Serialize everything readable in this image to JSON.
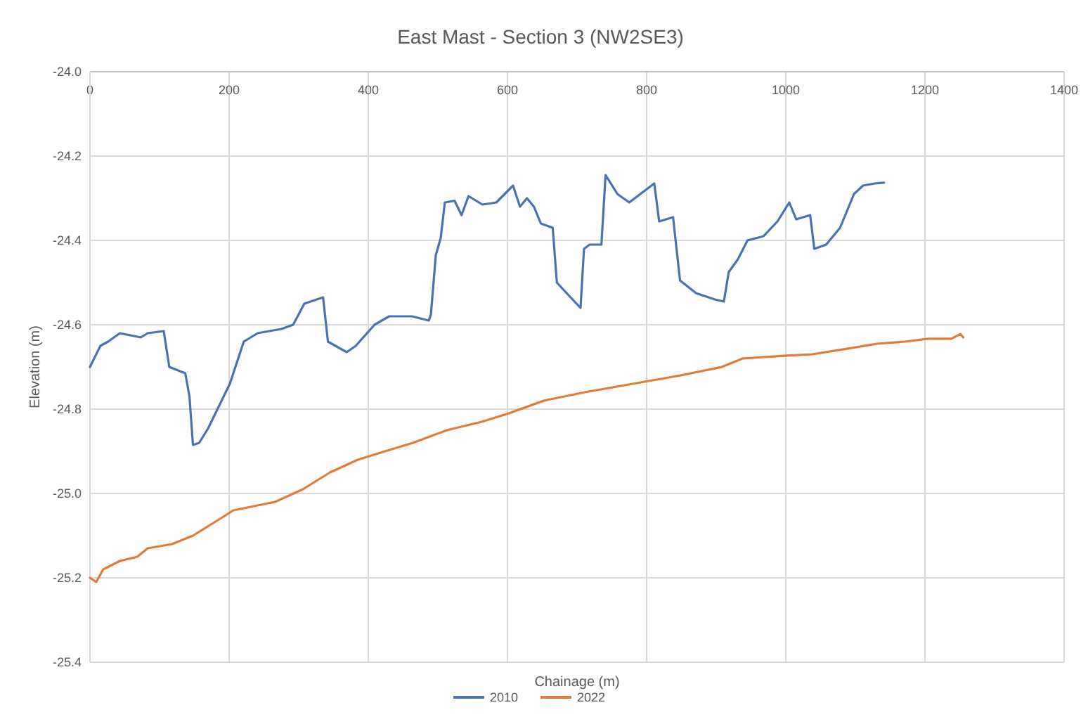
{
  "chart_data": {
    "type": "line",
    "title": "East Mast - Section 3 (NW2SE3)",
    "xlabel": "Chainage (m)",
    "ylabel": "Elevation (m)",
    "xlim": [
      0,
      1400
    ],
    "xticks": [
      0,
      200,
      400,
      600,
      800,
      1000,
      1200,
      1400
    ],
    "ylim": [
      -25.4,
      -24.0
    ],
    "yticks": [
      {
        "value": -25.4,
        "label": "-25.4"
      },
      {
        "value": -25.2,
        "label": "-25.2"
      },
      {
        "value": -25.0,
        "label": "-25.0"
      },
      {
        "value": -24.8,
        "label": "-24.8"
      },
      {
        "value": -24.6,
        "label": "-24.6"
      },
      {
        "value": -24.4,
        "label": "-24.4"
      },
      {
        "value": -24.2,
        "label": "-24.2"
      },
      {
        "value": -24.0,
        "label": "-24.0"
      }
    ],
    "grid": true,
    "legend": "bottom",
    "marker": "none",
    "line_style": "solid",
    "series": [
      {
        "name": "2010",
        "color": "#4a72b0",
        "x": [
          0,
          15,
          26,
          43,
          73,
          83,
          106,
          114,
          137,
          143,
          148,
          157,
          170,
          201,
          221,
          241,
          275,
          292,
          308,
          335,
          342,
          369,
          382,
          409,
          430,
          463,
          487,
          490,
          497,
          504,
          510,
          524,
          534,
          544,
          564,
          584,
          608,
          618,
          628,
          638,
          648,
          665,
          671,
          685,
          705,
          710,
          718,
          735,
          741,
          758,
          775,
          791,
          811,
          818,
          838,
          848,
          871,
          898,
          911,
          918,
          931,
          945,
          968,
          988,
          1005,
          1015,
          1035,
          1041,
          1058,
          1078,
          1098,
          1111,
          1128,
          1141
        ],
        "values": [
          -24.7,
          -24.65,
          -24.64,
          -24.62,
          -24.63,
          -24.62,
          -24.615,
          -24.7,
          -24.715,
          -24.77,
          -24.885,
          -24.88,
          -24.845,
          -24.74,
          -24.64,
          -24.62,
          -24.61,
          -24.6,
          -24.55,
          -24.535,
          -24.64,
          -24.665,
          -24.65,
          -24.6,
          -24.58,
          -24.58,
          -24.59,
          -24.575,
          -24.435,
          -24.395,
          -24.31,
          -24.306,
          -24.34,
          -24.295,
          -24.315,
          -24.31,
          -24.27,
          -24.32,
          -24.3,
          -24.32,
          -24.36,
          -24.37,
          -24.5,
          -24.525,
          -24.56,
          -24.42,
          -24.41,
          -24.41,
          -24.245,
          -24.29,
          -24.31,
          -24.29,
          -24.265,
          -24.355,
          -24.345,
          -24.495,
          -24.525,
          -24.54,
          -24.545,
          -24.475,
          -24.445,
          -24.4,
          -24.39,
          -24.355,
          -24.31,
          -24.35,
          -24.34,
          -24.42,
          -24.41,
          -24.37,
          -24.29,
          -24.27,
          -24.265,
          -24.263
        ]
      },
      {
        "name": "2022",
        "color": "#e07b39",
        "x": [
          0,
          9,
          19,
          43,
          68,
          83,
          118,
          148,
          187,
          206,
          266,
          306,
          345,
          385,
          424,
          464,
          513,
          563,
          602,
          652,
          711,
          780,
          849,
          908,
          938,
          1001,
          1038,
          1091,
          1131,
          1171,
          1205,
          1238,
          1251,
          1255
        ],
        "values": [
          -25.2,
          -25.21,
          -25.18,
          -25.16,
          -25.15,
          -25.13,
          -25.12,
          -25.1,
          -25.06,
          -25.04,
          -25.02,
          -24.99,
          -24.95,
          -24.92,
          -24.9,
          -24.88,
          -24.85,
          -24.83,
          -24.81,
          -24.78,
          -24.76,
          -24.74,
          -24.72,
          -24.7,
          -24.68,
          -24.673,
          -24.67,
          -24.656,
          -24.645,
          -24.64,
          -24.633,
          -24.633,
          -24.622,
          -24.63
        ]
      }
    ]
  }
}
